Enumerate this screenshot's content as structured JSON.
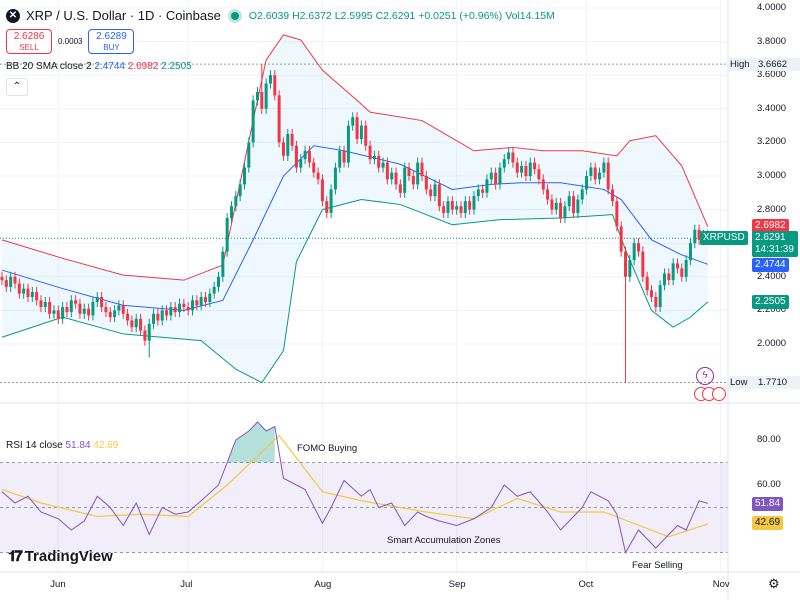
{
  "header": {
    "title": "XRP / U.S. Dollar · 1D · Coinbase",
    "open": "O2.6039",
    "high": "H2.6372",
    "low": "L2.5995",
    "close": "C2.6291",
    "change": "+0.0251 (+0.96%)",
    "volume": "Vol14.15M"
  },
  "trade": {
    "sell_price": "2.6286",
    "sell_label": "SELL",
    "spread": "0.0003",
    "buy_price": "2.6289",
    "buy_label": "BUY"
  },
  "bb_legend": {
    "label": "BB 20 SMA close 2",
    "basis": "2.4744",
    "upper": "2.6982",
    "lower": "2.2505"
  },
  "rsi_legend": {
    "label": "RSI 14 close",
    "rsi": "51.84",
    "ma": "42.69"
  },
  "price_axis": {
    "ticks": [
      "4.0000",
      "3.8000",
      "3.6000",
      "3.4000",
      "3.2000",
      "3.0000",
      "2.8000",
      "2.4000",
      "2.2000",
      "2.0000"
    ],
    "high_label": "High",
    "high_value": "3.6662",
    "low_label": "Low",
    "low_value": "1.7710",
    "upper_tag": "2.6982",
    "symbol_tag": "XRPUSD",
    "price_tag": "2.6291",
    "countdown": "14:31:39",
    "basis_tag": "2.4744",
    "lower_tag": "2.2505"
  },
  "rsi_axis": {
    "ticks": [
      "80.00",
      "60.00"
    ],
    "rsi_tag": "51.84",
    "ma_tag": "42.69"
  },
  "time_axis": {
    "labels": [
      "Jun",
      "Jul",
      "Aug",
      "Sep",
      "Oct",
      "Nov"
    ]
  },
  "annotations": {
    "fomo": "FOMO Buying",
    "accumulation": "Smart Accumulation Zones",
    "fear": "Fear Selling"
  },
  "branding": {
    "logo": "TradingView"
  },
  "icons": {
    "settings": "gear-icon",
    "collapse": "chevron-up-icon",
    "events": "event-icons"
  },
  "colors": {
    "up": "#089981",
    "down": "#f23645",
    "bb_upper": "#f23645",
    "bb_basis": "#2962ff",
    "bb_lower": "#089981",
    "rsi": "#7e57c2",
    "rsi_ma": "#f5c842"
  },
  "chart_data": [
    {
      "type": "candlestick",
      "title": "XRP / U.S. Dollar · 1D · Coinbase",
      "ylim": [
        1.75,
        4.0
      ],
      "first_date": "05-19",
      "closes": [
        2.38,
        2.34,
        2.4,
        2.36,
        2.3,
        2.33,
        2.28,
        2.31,
        2.26,
        2.22,
        2.25,
        2.18,
        2.2,
        2.15,
        2.22,
        2.19,
        2.26,
        2.24,
        2.18,
        2.21,
        2.17,
        2.25,
        2.28,
        2.22,
        2.19,
        2.16,
        2.2,
        2.23,
        2.18,
        2.14,
        2.1,
        2.15,
        2.08,
        2.02,
        2.12,
        2.18,
        2.14,
        2.2,
        2.17,
        2.22,
        2.19,
        2.24,
        2.22,
        2.2,
        2.26,
        2.23,
        2.28,
        2.25,
        2.3,
        2.34,
        2.4,
        2.55,
        2.75,
        2.82,
        2.88,
        2.95,
        3.05,
        3.2,
        3.45,
        3.5,
        3.4,
        3.55,
        3.6,
        3.48,
        3.2,
        3.12,
        3.25,
        3.18,
        3.05,
        3.1,
        3.15,
        3.08,
        3.02,
        2.98,
        2.85,
        2.78,
        2.92,
        3.05,
        3.15,
        3.08,
        3.3,
        3.35,
        3.22,
        3.3,
        3.18,
        3.1,
        3.12,
        3.05,
        3.08,
        2.98,
        3.02,
        2.95,
        2.9,
        3.05,
        3.0,
        2.95,
        3.08,
        3.0,
        2.92,
        2.88,
        2.95,
        2.82,
        2.78,
        2.85,
        2.8,
        2.82,
        2.78,
        2.85,
        2.8,
        2.88,
        2.92,
        2.9,
        2.98,
        3.02,
        2.95,
        3.05,
        3.1,
        3.14,
        3.08,
        3.02,
        3.06,
        3.0,
        3.08,
        3.04,
        2.98,
        2.92,
        2.86,
        2.8,
        2.84,
        2.75,
        2.82,
        2.88,
        2.78,
        2.86,
        2.92,
        3.0,
        3.05,
        2.98,
        3.02,
        3.08,
        2.92,
        2.85,
        2.7,
        2.55,
        2.4,
        2.5,
        2.6,
        2.55,
        2.4,
        2.32,
        2.28,
        2.22,
        2.35,
        2.42,
        2.38,
        2.48,
        2.45,
        2.4,
        2.5,
        2.6,
        2.68,
        2.62,
        2.65,
        2.6291
      ],
      "notable_wicks": [
        {
          "date": "06-22",
          "low": 1.92
        },
        {
          "date": "07-18",
          "high": 3.6662
        },
        {
          "date": "10-10",
          "low": 1.771
        }
      ],
      "bollinger": {
        "upper": [
          [
            "05-19",
            2.62
          ],
          [
            "06-02",
            2.51
          ],
          [
            "06-16",
            2.41
          ],
          [
            "06-30",
            2.38
          ],
          [
            "07-09",
            2.47
          ],
          [
            "07-16",
            3.33
          ],
          [
            "07-19",
            3.69
          ],
          [
            "07-23",
            3.84
          ],
          [
            "07-27",
            3.81
          ],
          [
            "08-01",
            3.63
          ],
          [
            "08-09",
            3.45
          ],
          [
            "08-12",
            3.38
          ],
          [
            "08-24",
            3.33
          ],
          [
            "09-05",
            3.15
          ],
          [
            "09-14",
            3.17
          ],
          [
            "09-21",
            3.15
          ],
          [
            "09-30",
            3.15
          ],
          [
            "10-08",
            3.12
          ],
          [
            "10-11",
            3.21
          ],
          [
            "10-17",
            3.24
          ],
          [
            "10-23",
            3.06
          ],
          [
            "10-29",
            2.6982
          ]
        ],
        "basis": [
          [
            "05-19",
            2.44
          ],
          [
            "06-02",
            2.33
          ],
          [
            "06-16",
            2.23
          ],
          [
            "06-30",
            2.2
          ],
          [
            "07-09",
            2.26
          ],
          [
            "07-16",
            2.62
          ],
          [
            "07-23",
            3.0
          ],
          [
            "07-30",
            3.18
          ],
          [
            "08-06",
            3.15
          ],
          [
            "08-19",
            3.07
          ],
          [
            "08-31",
            2.92
          ],
          [
            "09-09",
            2.95
          ],
          [
            "09-16",
            2.96
          ],
          [
            "09-25",
            2.96
          ],
          [
            "10-05",
            2.92
          ],
          [
            "10-09",
            2.86
          ],
          [
            "10-16",
            2.62
          ],
          [
            "10-23",
            2.53
          ],
          [
            "10-29",
            2.4744
          ]
        ],
        "lower": [
          [
            "05-19",
            2.04
          ],
          [
            "06-02",
            2.16
          ],
          [
            "06-16",
            2.06
          ],
          [
            "07-04",
            2.02
          ],
          [
            "07-12",
            1.85
          ],
          [
            "07-18",
            1.77
          ],
          [
            "07-23",
            1.96
          ],
          [
            "07-26",
            2.49
          ],
          [
            "08-01",
            2.8
          ],
          [
            "08-10",
            2.86
          ],
          [
            "08-19",
            2.83
          ],
          [
            "08-31",
            2.71
          ],
          [
            "09-11",
            2.74
          ],
          [
            "09-25",
            2.75
          ],
          [
            "10-07",
            2.77
          ],
          [
            "10-10",
            2.56
          ],
          [
            "10-16",
            2.2
          ],
          [
            "10-21",
            2.1
          ],
          [
            "10-25",
            2.16
          ],
          [
            "10-29",
            2.2505
          ]
        ]
      }
    },
    {
      "type": "line",
      "title": "RSI 14 close",
      "ylim": [
        25,
        95
      ],
      "bands": [
        30,
        70
      ],
      "rsi": [
        [
          "05-19",
          57
        ],
        [
          "05-22",
          52
        ],
        [
          "05-25",
          55
        ],
        [
          "05-28",
          48
        ],
        [
          "06-01",
          45
        ],
        [
          "06-04",
          40
        ],
        [
          "06-07",
          44
        ],
        [
          "06-10",
          55
        ],
        [
          "06-13",
          50
        ],
        [
          "06-16",
          42
        ],
        [
          "06-19",
          52
        ],
        [
          "06-22",
          38
        ],
        [
          "06-25",
          50
        ],
        [
          "06-28",
          47
        ],
        [
          "07-01",
          48
        ],
        [
          "07-04",
          53
        ],
        [
          "07-08",
          60
        ],
        [
          "07-10",
          70
        ],
        [
          "07-12",
          80
        ],
        [
          "07-15",
          84
        ],
        [
          "07-17",
          88
        ],
        [
          "07-19",
          84
        ],
        [
          "07-21",
          86
        ],
        [
          "07-23",
          63
        ],
        [
          "07-26",
          60
        ],
        [
          "07-28",
          58
        ],
        [
          "08-01",
          43
        ],
        [
          "08-03",
          50
        ],
        [
          "08-06",
          62
        ],
        [
          "08-10",
          55
        ],
        [
          "08-12",
          58
        ],
        [
          "08-14",
          50
        ],
        [
          "08-17",
          52
        ],
        [
          "08-20",
          42
        ],
        [
          "08-23",
          48
        ],
        [
          "08-25",
          46
        ],
        [
          "08-28",
          44
        ],
        [
          "09-01",
          42
        ],
        [
          "09-05",
          45
        ],
        [
          "09-09",
          50
        ],
        [
          "09-12",
          60
        ],
        [
          "09-15",
          55
        ],
        [
          "09-18",
          57
        ],
        [
          "09-22",
          48
        ],
        [
          "09-25",
          40
        ],
        [
          "09-28",
          46
        ],
        [
          "09-30",
          50
        ],
        [
          "10-02",
          57
        ],
        [
          "10-06",
          53
        ],
        [
          "10-08",
          47
        ],
        [
          "10-10",
          30
        ],
        [
          "10-13",
          40
        ],
        [
          "10-17",
          32
        ],
        [
          "10-20",
          38
        ],
        [
          "10-22",
          42
        ],
        [
          "10-24",
          40
        ],
        [
          "10-27",
          53
        ],
        [
          "10-29",
          51.84
        ]
      ],
      "ma": [
        [
          "05-19",
          58
        ],
        [
          "05-28",
          52
        ],
        [
          "06-10",
          46
        ],
        [
          "06-20",
          47
        ],
        [
          "07-01",
          46
        ],
        [
          "07-10",
          60
        ],
        [
          "07-22",
          82
        ],
        [
          "08-01",
          57
        ],
        [
          "08-10",
          53
        ],
        [
          "08-25",
          48
        ],
        [
          "09-05",
          45
        ],
        [
          "09-15",
          54
        ],
        [
          "09-25",
          48
        ],
        [
          "10-05",
          48
        ],
        [
          "10-20",
          37
        ],
        [
          "10-29",
          42.69
        ]
      ]
    }
  ]
}
